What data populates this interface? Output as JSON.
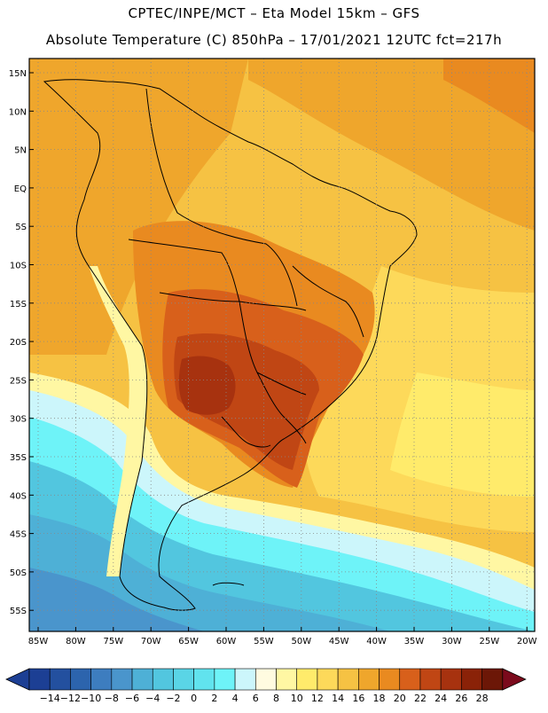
{
  "header": {
    "line1": "CPTEC/INPE/MCT –  Eta Model 15km – GFS",
    "line2": "Absolute Temperature (C) 850hPa – 17/01/2021 12UTC fct=217h"
  },
  "map": {
    "lat_labels": [
      "15N",
      "10N",
      "5N",
      "EQ",
      "5S",
      "10S",
      "15S",
      "20S",
      "25S",
      "30S",
      "35S",
      "40S",
      "45S",
      "50S",
      "55S"
    ],
    "lon_labels": [
      "85W",
      "80W",
      "75W",
      "70W",
      "65W",
      "60W",
      "55W",
      "50W",
      "45W",
      "40W",
      "35W",
      "30W",
      "25W",
      "20W"
    ],
    "grid": "dotted"
  },
  "colorbar": {
    "labels": [
      "-14",
      "-12",
      "-10",
      "-8",
      "-6",
      "-4",
      "-2",
      "0",
      "2",
      "4",
      "6",
      "8",
      "10",
      "12",
      "14",
      "16",
      "18",
      "20",
      "22",
      "24",
      "26",
      "28"
    ],
    "colors": [
      "#1c3f94",
      "#23509f",
      "#2c64ad",
      "#3d7dbf",
      "#4a95cc",
      "#4eb0d6",
      "#52c6df",
      "#5ad5e6",
      "#61e3ee",
      "#6ef3f8",
      "#ccf6fb",
      "#fffbe0",
      "#fff7a3",
      "#ffeb6b",
      "#fdd95a",
      "#f6c243",
      "#efa62c",
      "#e98a20",
      "#d8601b",
      "#c04614",
      "#a7320f",
      "#8a2208",
      "#6c1707",
      "#7b0a1c"
    ]
  }
}
